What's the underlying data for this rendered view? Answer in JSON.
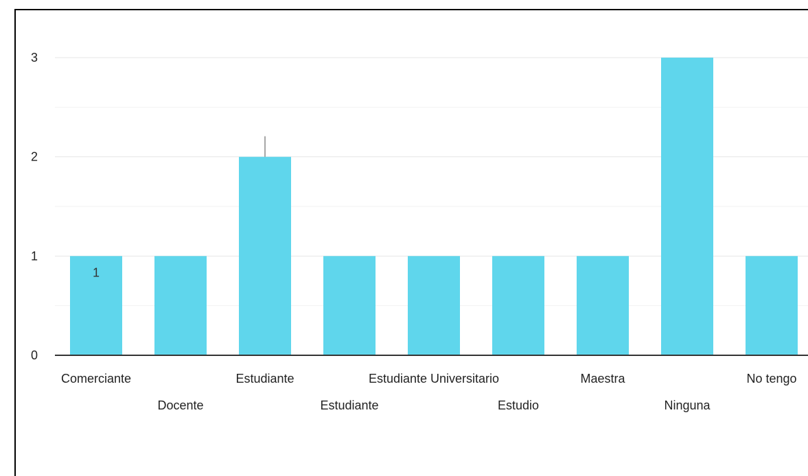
{
  "chart_data": {
    "type": "bar",
    "categories": [
      "Comerciante",
      "Docente",
      "Estudiante",
      "Estudiante",
      "Estudiante Universitario",
      "Estudio",
      "Maestra",
      "Ninguna",
      "No tengo"
    ],
    "values": [
      1,
      1,
      2,
      1,
      1,
      1,
      1,
      3,
      1
    ],
    "ylim": [
      0,
      3
    ],
    "yticks": [
      "0",
      "1",
      "2",
      "3"
    ],
    "grid": true,
    "bar_color": "#5fd6ec",
    "data_labels": [
      {
        "index": 0,
        "text": "1"
      }
    ]
  }
}
